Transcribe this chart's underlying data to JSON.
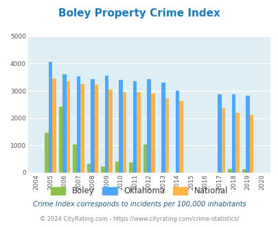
{
  "title": "Boley Property Crime Index",
  "years": [
    2004,
    2005,
    2006,
    2007,
    2008,
    2009,
    2010,
    2011,
    2012,
    2013,
    2014,
    2015,
    2016,
    2017,
    2018,
    2019,
    2020
  ],
  "boley": [
    0,
    1470,
    2430,
    1030,
    330,
    220,
    390,
    370,
    1020,
    0,
    0,
    0,
    0,
    0,
    120,
    120,
    0
  ],
  "oklahoma": [
    0,
    4050,
    3600,
    3520,
    3440,
    3560,
    3410,
    3360,
    3420,
    3300,
    3010,
    0,
    0,
    2880,
    2880,
    2830,
    0
  ],
  "national": [
    0,
    3450,
    3350,
    3250,
    3230,
    3060,
    2960,
    2950,
    2890,
    2730,
    2610,
    0,
    0,
    2360,
    2190,
    2120,
    0
  ],
  "boley_color": "#8bc34a",
  "oklahoma_color": "#4da6ff",
  "national_color": "#ffb347",
  "bg_color": "#ddeef5",
  "title_color": "#1a7abf",
  "ylim": [
    0,
    5000
  ],
  "yticks": [
    0,
    1000,
    2000,
    3000,
    4000,
    5000
  ],
  "footnote1": "Crime Index corresponds to incidents per 100,000 inhabitants",
  "footnote2": "© 2024 CityRating.com - https://www.cityrating.com/crime-statistics/",
  "footnote_color1": "#1a5a8a",
  "footnote_color2": "#888888",
  "bar_width": 0.27
}
